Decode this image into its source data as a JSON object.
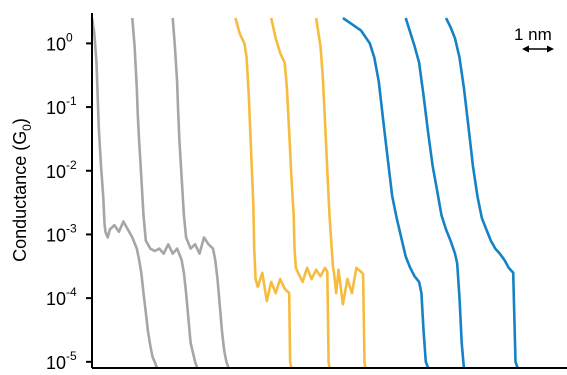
{
  "chart_data": {
    "type": "line",
    "title": "",
    "xlabel": "",
    "ylabel": "Conductance (G",
    "ylabel_sub": "0",
    "ylabel_close": ")",
    "yscale": "log",
    "ylim": [
      8e-06,
      3
    ],
    "xlim": [
      0,
      10.6
    ],
    "yticks": [
      {
        "base": "10",
        "exp": "0",
        "value": 1
      },
      {
        "base": "10",
        "exp": "-1",
        "value": 0.1
      },
      {
        "base": "10",
        "exp": "-2",
        "value": 0.01
      },
      {
        "base": "10",
        "exp": "-3",
        "value": 0.001
      },
      {
        "base": "10",
        "exp": "-4",
        "value": 0.0001
      },
      {
        "base": "10",
        "exp": "-5",
        "value": 1e-05
      }
    ],
    "scale_bar": {
      "label": "1 nm",
      "length_nm": 1
    },
    "grid": false,
    "series": [
      {
        "color": "#a6a6a6",
        "x": [
          0.0,
          0.05,
          0.1,
          0.12,
          0.15,
          0.2,
          0.25,
          0.28,
          0.3,
          0.35,
          0.4,
          0.5,
          0.6,
          0.7,
          0.8,
          0.9,
          1.0,
          1.05,
          1.1,
          1.15,
          1.2,
          1.25,
          1.3,
          1.35,
          1.4,
          1.45
        ],
        "y": [
          2.5,
          1.5,
          0.5,
          0.2,
          0.05,
          0.012,
          0.004,
          0.0015,
          0.0011,
          0.0009,
          0.0012,
          0.0014,
          0.0011,
          0.0016,
          0.0012,
          0.0009,
          0.0006,
          0.0004,
          0.00025,
          0.00012,
          6e-05,
          3e-05,
          1.8e-05,
          1.2e-05,
          1e-05,
          8e-06
        ]
      },
      {
        "color": "#a6a6a6",
        "x": [
          0.9,
          0.95,
          1.0,
          1.02,
          1.05,
          1.1,
          1.15,
          1.2,
          1.3,
          1.4,
          1.5,
          1.6,
          1.7,
          1.8,
          1.9,
          2.0,
          2.05,
          2.1,
          2.15,
          2.2,
          2.3,
          2.35
        ],
        "y": [
          2.5,
          0.9,
          0.2,
          0.08,
          0.03,
          0.008,
          0.002,
          0.0008,
          0.0006,
          0.00055,
          0.0006,
          0.0005,
          0.0007,
          0.0005,
          0.0006,
          0.0004,
          0.00025,
          0.00012,
          5e-05,
          2e-05,
          1e-05,
          8e-06
        ]
      },
      {
        "color": "#a6a6a6",
        "x": [
          1.8,
          1.85,
          1.9,
          1.92,
          1.95,
          2.0,
          2.05,
          2.1,
          2.2,
          2.3,
          2.4,
          2.5,
          2.6,
          2.7,
          2.75,
          2.8,
          2.85,
          2.9,
          2.95,
          3.0,
          3.05
        ],
        "y": [
          2.5,
          0.9,
          0.25,
          0.1,
          0.03,
          0.008,
          0.002,
          0.0009,
          0.0006,
          0.0007,
          0.0005,
          0.0009,
          0.0007,
          0.0006,
          0.0004,
          0.0002,
          8e-05,
          3e-05,
          1.5e-05,
          1e-05,
          8e-06
        ]
      },
      {
        "color": "#f6bc3f",
        "x": [
          3.2,
          3.3,
          3.4,
          3.45,
          3.5,
          3.55,
          3.6,
          3.62,
          3.65,
          3.7,
          3.8,
          3.9,
          4.0,
          4.1,
          4.2,
          4.3,
          4.35,
          4.4,
          4.42,
          4.45
        ],
        "y": [
          2.5,
          1.4,
          1.0,
          0.6,
          0.15,
          0.02,
          0.003,
          0.0006,
          0.0002,
          0.00015,
          0.00025,
          9e-05,
          0.00018,
          0.00012,
          0.0002,
          0.00014,
          0.00013,
          0.00012,
          1e-05,
          8e-06
        ]
      },
      {
        "color": "#f6bc3f",
        "x": [
          4.0,
          4.1,
          4.2,
          4.3,
          4.35,
          4.4,
          4.45,
          4.5,
          4.52,
          4.55,
          4.6,
          4.7,
          4.8,
          4.9,
          5.0,
          5.1,
          5.2,
          5.25,
          5.28,
          5.3
        ],
        "y": [
          2.5,
          1.2,
          0.7,
          0.5,
          0.2,
          0.04,
          0.008,
          0.002,
          0.0006,
          0.0003,
          0.00025,
          0.00018,
          0.0003,
          0.0002,
          0.00028,
          0.00022,
          0.0003,
          0.00026,
          1e-05,
          8e-06
        ]
      },
      {
        "color": "#f6bc3f",
        "x": [
          5.0,
          5.1,
          5.15,
          5.2,
          5.25,
          5.3,
          5.35,
          5.38,
          5.4,
          5.45,
          5.5,
          5.6,
          5.7,
          5.8,
          5.9,
          6.0,
          6.05,
          6.08,
          6.1
        ],
        "y": [
          2.5,
          0.9,
          0.3,
          0.06,
          0.01,
          0.002,
          0.0006,
          0.0003,
          0.00025,
          0.00012,
          0.00028,
          8e-05,
          0.0002,
          0.00012,
          0.0003,
          0.00026,
          0.00024,
          1e-05,
          8e-06
        ]
      },
      {
        "color": "#1482c4",
        "x": [
          5.6,
          5.8,
          6.0,
          6.2,
          6.3,
          6.4,
          6.5,
          6.6,
          6.7,
          6.8,
          6.9,
          7.0,
          7.1,
          7.2,
          7.3,
          7.35,
          7.4,
          7.45,
          7.5
        ],
        "y": [
          2.5,
          2.0,
          1.6,
          1.0,
          0.6,
          0.25,
          0.06,
          0.015,
          0.004,
          0.0018,
          0.0009,
          0.00045,
          0.0003,
          0.00022,
          0.00018,
          0.00012,
          3e-05,
          1e-05,
          8e-06
        ]
      },
      {
        "color": "#1482c4",
        "x": [
          7.0,
          7.1,
          7.2,
          7.3,
          7.4,
          7.5,
          7.6,
          7.7,
          7.8,
          7.9,
          8.0,
          8.1,
          8.15,
          8.2,
          8.25,
          8.3
        ],
        "y": [
          2.5,
          1.5,
          0.9,
          0.5,
          0.15,
          0.04,
          0.012,
          0.005,
          0.002,
          0.0012,
          0.0008,
          0.0005,
          0.00035,
          0.0001,
          2e-05,
          8e-06
        ]
      },
      {
        "color": "#1482c4",
        "x": [
          7.9,
          8.0,
          8.1,
          8.2,
          8.3,
          8.4,
          8.5,
          8.6,
          8.7,
          8.8,
          8.9,
          9.0,
          9.1,
          9.2,
          9.3,
          9.4,
          9.45,
          9.5
        ],
        "y": [
          2.5,
          1.8,
          1.2,
          0.6,
          0.2,
          0.05,
          0.012,
          0.004,
          0.0018,
          0.0012,
          0.0008,
          0.0006,
          0.0005,
          0.0004,
          0.0003,
          0.00025,
          1e-05,
          8e-06
        ]
      }
    ]
  }
}
